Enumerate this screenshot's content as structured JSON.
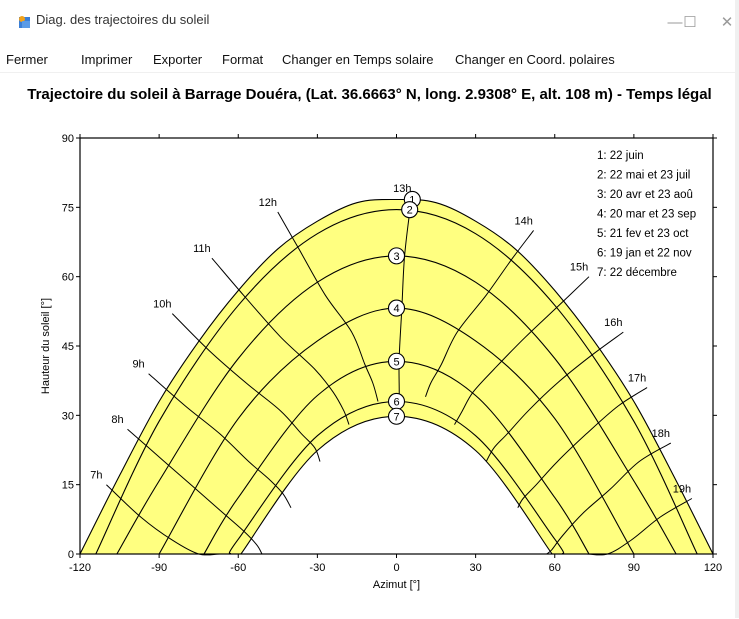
{
  "window": {
    "title": "Diag. des trajectoires du soleil",
    "buttons": {
      "minimize": "—",
      "maximize": "☐",
      "close": "✕"
    }
  },
  "menu": [
    "Fermer",
    "Imprimer",
    "Exporter",
    "Format",
    "Changer en Temps solaire",
    "Changer en Coord. polaires"
  ],
  "chart_title": "Trajectoire du soleil à Barrage Douéra, (Lat. 36.6663° N, long. 2.9308° E, alt. 108 m) - Temps légal",
  "chart_data": {
    "type": "line",
    "xlabel": "Azimut [°]",
    "ylabel": "Hauteur du soleil [°]",
    "xlim": [
      -120,
      120
    ],
    "ylim": [
      0,
      90
    ],
    "xticks": [
      -120,
      -90,
      -60,
      -30,
      0,
      30,
      60,
      90,
      120
    ],
    "yticks": [
      0,
      15,
      30,
      45,
      60,
      75,
      90
    ],
    "fill_color": "#ffff80",
    "series": [
      {
        "name": "1: 22 juin",
        "marker": "1",
        "marker_azimuth": 6,
        "marker_altitude": 76.7,
        "x": [
          -120,
          -105,
          -90,
          -75,
          -60,
          -45,
          -30,
          -15,
          0,
          15,
          30,
          45,
          60,
          75,
          90,
          105,
          120
        ],
        "y": [
          0,
          17,
          33,
          46,
          57,
          66,
          72,
          76,
          76.7,
          76,
          72,
          66,
          57,
          46,
          33,
          17,
          0
        ]
      },
      {
        "name": "2: 22 mai et 23 juil",
        "marker": "2",
        "marker_azimuth": 5,
        "marker_altitude": 74.5,
        "x": [
          -114,
          -90,
          -60,
          -30,
          0,
          30,
          60,
          90,
          114
        ],
        "y": [
          0,
          28.7,
          53.8,
          69.3,
          74.5,
          69.3,
          53.8,
          28.7,
          0
        ]
      },
      {
        "name": "3: 20 avr et 23 aoû",
        "marker": "3",
        "marker_azimuth": 0,
        "marker_altitude": 64.5,
        "x": [
          -106,
          -90,
          -60,
          -30,
          0,
          30,
          60,
          90,
          106
        ],
        "y": [
          0,
          15.8,
          42.3,
          58.8,
          64.5,
          58.8,
          42.3,
          15.8,
          0
        ]
      },
      {
        "name": "4: 20 mar et 23 sep",
        "marker": "4",
        "marker_azimuth": 0,
        "marker_altitude": 53.2,
        "x": [
          -90,
          -60,
          -30,
          0,
          30,
          60,
          90
        ],
        "y": [
          0,
          29.3,
          46.1,
          53.2,
          46.1,
          29.3,
          0
        ]
      },
      {
        "name": "5: 21 fev et 23 oct",
        "marker": "5",
        "marker_azimuth": 0,
        "marker_altitude": 41.7,
        "x": [
          -73,
          -60,
          -30,
          0,
          30,
          60,
          73
        ],
        "y": [
          0,
          12.2,
          34.3,
          41.7,
          34.3,
          12.2,
          0
        ]
      },
      {
        "name": "6: 19 jan et 22 nov",
        "marker": "6",
        "marker_azimuth": 0,
        "marker_altitude": 33,
        "x": [
          -63,
          -60,
          -30,
          0,
          30,
          60,
          63
        ],
        "y": [
          0,
          3.2,
          25.6,
          33,
          25.6,
          3.2,
          0
        ]
      },
      {
        "name": "7: 22 décembre",
        "marker": "7",
        "marker_azimuth": 0,
        "marker_altitude": 29.8,
        "x": [
          -59,
          -30,
          0,
          30,
          59
        ],
        "y": [
          0,
          22.4,
          29.8,
          22.4,
          0
        ]
      }
    ],
    "hour_lines": [
      {
        "label": "7h",
        "x": [
          -110,
          -97,
          -85,
          -75,
          -67,
          -62,
          -59
        ],
        "y": [
          15,
          8,
          3,
          0,
          0,
          0,
          0
        ]
      },
      {
        "label": "8h",
        "x": [
          -102,
          -88,
          -76,
          -66,
          -58,
          -53,
          -51
        ],
        "y": [
          27,
          20,
          14,
          9,
          5,
          2,
          0
        ]
      },
      {
        "label": "9h",
        "x": [
          -94,
          -80,
          -67,
          -56,
          -48,
          -43,
          -40
        ],
        "y": [
          39,
          32,
          26,
          20,
          16,
          13,
          10
        ]
      },
      {
        "label": "10h",
        "x": [
          -85,
          -71,
          -57,
          -44,
          -36,
          -31,
          -29
        ],
        "y": [
          52,
          44,
          37,
          31,
          26,
          23,
          20
        ]
      },
      {
        "label": "11h",
        "x": [
          -70,
          -58,
          -44,
          -31,
          -24,
          -20,
          -18
        ],
        "y": [
          64,
          56,
          47,
          40,
          35,
          31,
          28
        ]
      },
      {
        "label": "12h",
        "x": [
          -45,
          -37,
          -27,
          -17,
          -12,
          -9,
          -7
        ],
        "y": [
          74,
          66,
          56,
          48,
          41,
          37,
          33
        ]
      },
      {
        "label": "13h",
        "x": [
          6,
          5,
          3,
          2,
          1,
          1,
          0
        ],
        "y": [
          77,
          74,
          64,
          53,
          42,
          33,
          30
        ]
      },
      {
        "label": "14h",
        "x": [
          52,
          44,
          34,
          23,
          17,
          13,
          11
        ],
        "y": [
          70,
          64,
          56,
          48,
          41,
          37,
          34
        ]
      },
      {
        "label": "15h",
        "x": [
          73,
          62,
          49,
          37,
          29,
          25,
          22
        ],
        "y": [
          60,
          54,
          47,
          40,
          35,
          31,
          28
        ]
      },
      {
        "label": "16h",
        "x": [
          86,
          74,
          61,
          50,
          42,
          37,
          34
        ],
        "y": [
          48,
          43,
          37,
          31,
          26,
          23,
          20
        ]
      },
      {
        "label": "17h",
        "x": [
          95,
          84,
          72,
          61,
          53,
          48,
          46
        ],
        "y": [
          36,
          32,
          26,
          20,
          15,
          12,
          10
        ]
      },
      {
        "label": "18h",
        "x": [
          104,
          92,
          81,
          71,
          63,
          59,
          57
        ],
        "y": [
          24,
          20,
          14,
          9,
          4,
          1,
          0
        ]
      },
      {
        "label": "19h",
        "x": [
          112,
          100,
          89,
          80,
          72,
          65,
          61
        ],
        "y": [
          12,
          8,
          3,
          0,
          0,
          0,
          0
        ]
      }
    ]
  }
}
